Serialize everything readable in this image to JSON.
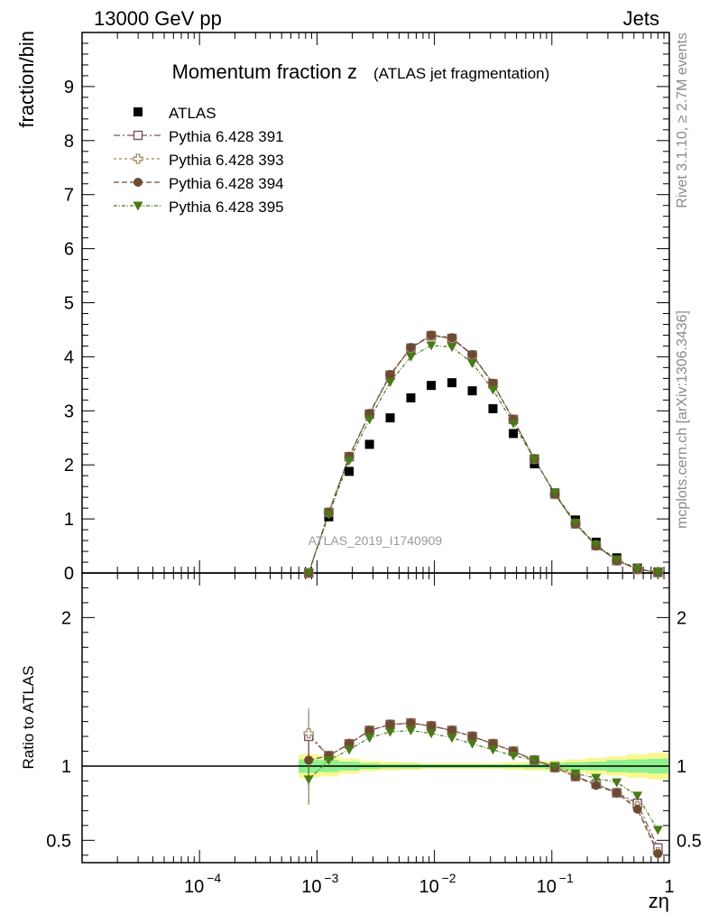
{
  "header": {
    "left": "13000 GeV pp",
    "right": "Jets"
  },
  "side": {
    "rivet": "Rivet 3.1.10, ≥ 2.7M events",
    "mcplots": "mcplots.cern.ch [arXiv:1306.3436]"
  },
  "colors": {
    "atlas": "#000000",
    "s391": "#7b4f5f",
    "s393": "#a08a66",
    "s394": "#6e4a33",
    "s395": "#4a7a16",
    "band_inner": "#8ef08e",
    "band_outer": "#f8f890"
  },
  "chart_data": [
    {
      "panel": "main",
      "type": "scatter",
      "title_main": "Momentum fraction z",
      "title_sub": "(ATLAS jet fragmentation)",
      "ylabel": "fraction/bin",
      "watermark": "ATLAS_2019_I1740909",
      "xscale": "log",
      "xlim": [
        1e-05,
        1
      ],
      "ylim": [
        0,
        10
      ],
      "yticks": [
        0,
        1,
        2,
        3,
        4,
        5,
        6,
        7,
        8,
        9
      ],
      "ytick_labels": [
        "0",
        "1",
        "2",
        "3",
        "4",
        "5",
        "6",
        "7",
        "8",
        "9"
      ],
      "legend_position": "top-left",
      "x": [
        0.00085,
        0.00126,
        0.00188,
        0.0028,
        0.0042,
        0.0063,
        0.0094,
        0.0141,
        0.021,
        0.0315,
        0.047,
        0.071,
        0.106,
        0.159,
        0.238,
        0.357,
        0.535,
        0.8
      ],
      "series": [
        {
          "name": "ATLAS",
          "marker": "square-filled",
          "values": [
            0.0,
            1.04,
            1.88,
            2.38,
            2.87,
            3.24,
            3.47,
            3.52,
            3.37,
            3.04,
            2.58,
            2.02,
            1.48,
            0.98,
            0.57,
            0.28,
            0.09,
            0.02
          ]
        },
        {
          "name": "Pythia 6.428 391",
          "marker": "square-open",
          "values": [
            0.0,
            1.12,
            2.15,
            2.94,
            3.66,
            4.16,
            4.39,
            4.34,
            4.03,
            3.5,
            2.84,
            2.11,
            1.46,
            0.91,
            0.51,
            0.23,
            0.07,
            0.01
          ]
        },
        {
          "name": "Pythia 6.428 393",
          "marker": "cross-open",
          "values": [
            0.0,
            1.12,
            2.15,
            2.94,
            3.66,
            4.16,
            4.39,
            4.34,
            4.03,
            3.5,
            2.84,
            2.11,
            1.46,
            0.91,
            0.51,
            0.23,
            0.07,
            0.01
          ]
        },
        {
          "name": "Pythia 6.428 394",
          "marker": "circle-filled",
          "values": [
            0.0,
            1.12,
            2.16,
            2.95,
            3.67,
            4.17,
            4.4,
            4.35,
            4.04,
            3.51,
            2.84,
            2.11,
            1.46,
            0.91,
            0.5,
            0.23,
            0.07,
            0.01
          ]
        },
        {
          "name": "Pythia 6.428 395",
          "marker": "triangle-down-filled",
          "values": [
            0.0,
            1.08,
            2.08,
            2.84,
            3.53,
            4.0,
            4.21,
            4.18,
            3.88,
            3.39,
            2.77,
            2.1,
            1.48,
            0.93,
            0.52,
            0.25,
            0.08,
            0.01
          ]
        }
      ]
    },
    {
      "panel": "ratio",
      "type": "scatter",
      "ylabel": "Ratio to ATLAS",
      "xlabel": "zη",
      "xscale": "log",
      "xlim": [
        1e-05,
        1
      ],
      "ylim": [
        0.35,
        2.3
      ],
      "yticks": [
        0.5,
        1,
        2
      ],
      "ytick_labels": [
        "0.5",
        "1",
        "2"
      ],
      "xticks": [
        0.0001,
        0.001,
        0.01,
        0.1,
        1
      ],
      "xtick_labels": [
        [
          "10",
          "−4"
        ],
        [
          "10",
          "−3"
        ],
        [
          "10",
          "−2"
        ],
        [
          "10",
          "−1"
        ],
        [
          "1",
          ""
        ]
      ],
      "x": [
        0.00085,
        0.00126,
        0.00188,
        0.0028,
        0.0042,
        0.0063,
        0.0094,
        0.0141,
        0.021,
        0.0315,
        0.047,
        0.071,
        0.106,
        0.159,
        0.238,
        0.357,
        0.535,
        0.8
      ],
      "band_inner": [
        0.045,
        0.04,
        0.03,
        0.02,
        0.015,
        0.015,
        0.012,
        0.012,
        0.012,
        0.012,
        0.012,
        0.015,
        0.02,
        0.025,
        0.03,
        0.04,
        0.045,
        0.05
      ],
      "band_outer": [
        0.08,
        0.07,
        0.05,
        0.035,
        0.03,
        0.025,
        0.02,
        0.02,
        0.02,
        0.02,
        0.025,
        0.03,
        0.035,
        0.045,
        0.055,
        0.065,
        0.08,
        0.09
      ],
      "series": [
        {
          "name": "Pythia 6.428 391",
          "marker": "square-open",
          "values": [
            1.2,
            1.07,
            1.15,
            1.24,
            1.28,
            1.29,
            1.27,
            1.24,
            1.2,
            1.15,
            1.1,
            1.04,
            0.99,
            0.93,
            0.88,
            0.82,
            0.75,
            0.45
          ]
        },
        {
          "name": "Pythia 6.428 393",
          "marker": "cross-open",
          "values": [
            1.22,
            1.07,
            1.15,
            1.24,
            1.28,
            1.29,
            1.27,
            1.24,
            1.2,
            1.15,
            1.1,
            1.04,
            0.99,
            0.93,
            0.88,
            0.82,
            0.73,
            0.42
          ]
        },
        {
          "name": "Pythia 6.428 394",
          "marker": "circle-filled",
          "values": [
            1.04,
            1.07,
            1.15,
            1.24,
            1.28,
            1.29,
            1.27,
            1.24,
            1.2,
            1.15,
            1.1,
            1.04,
            0.99,
            0.93,
            0.87,
            0.82,
            0.71,
            0.41
          ]
        },
        {
          "name": "Pythia 6.428 395",
          "marker": "triangle-down-filled",
          "values": [
            0.91,
            1.04,
            1.11,
            1.19,
            1.23,
            1.24,
            1.22,
            1.19,
            1.15,
            1.11,
            1.07,
            1.04,
            1.0,
            0.95,
            0.92,
            0.89,
            0.8,
            0.57
          ]
        }
      ]
    }
  ]
}
